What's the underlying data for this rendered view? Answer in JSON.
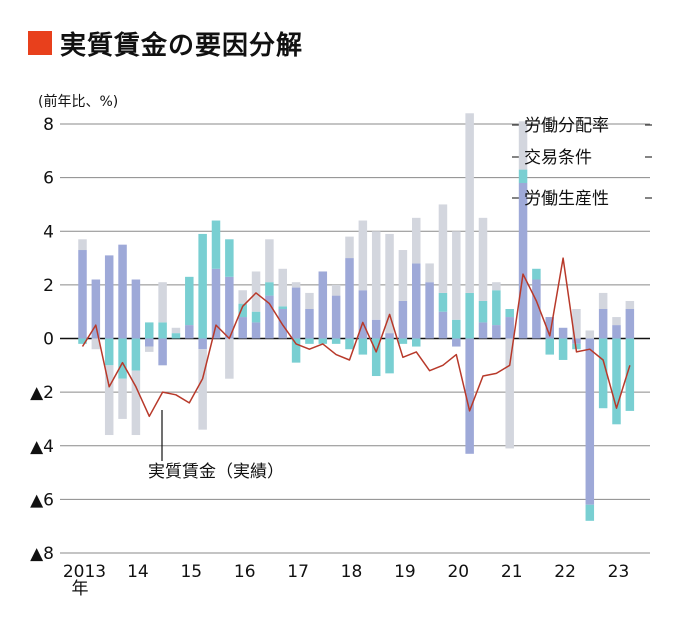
{
  "title": "実質賃金の要因分解",
  "colors": {
    "title_square": "#e8401c",
    "productivity": "#9ea9d8",
    "labor_share": "#d3d6de",
    "terms_of_trade": "#79cfd2",
    "real_wage_line": "#b8392a",
    "grid": "#8a8a8a",
    "zero_line": "#111111"
  },
  "chart_data": {
    "type": "bar",
    "stacked": true,
    "title": "実質賃金の要因分解",
    "unit_label": "(前年比、%)",
    "x_tick_labels": [
      "2013",
      "14",
      "15",
      "16",
      "17",
      "18",
      "19",
      "20",
      "21",
      "22",
      "23"
    ],
    "x_year_suffix": "年",
    "y_tick_labels": [
      "8",
      "6",
      "4",
      "2",
      "0",
      "▲2",
      "▲4",
      "▲6",
      "▲8"
    ],
    "ylim": [
      -8,
      8
    ],
    "y_ticks": [
      8,
      6,
      4,
      2,
      0,
      -2,
      -4,
      -6,
      -8
    ],
    "grid": true,
    "categories": [
      "2013Q1",
      "2013Q2",
      "2013Q3",
      "2013Q4",
      "2014Q1",
      "2014Q2",
      "2014Q3",
      "2014Q4",
      "2015Q1",
      "2015Q2",
      "2015Q3",
      "2015Q4",
      "2016Q1",
      "2016Q2",
      "2016Q3",
      "2016Q4",
      "2017Q1",
      "2017Q2",
      "2017Q3",
      "2017Q4",
      "2018Q1",
      "2018Q2",
      "2018Q3",
      "2018Q4",
      "2019Q1",
      "2019Q2",
      "2019Q3",
      "2019Q4",
      "2020Q1",
      "2020Q2",
      "2020Q3",
      "2020Q4",
      "2021Q1",
      "2021Q2",
      "2021Q3",
      "2021Q4",
      "2022Q1",
      "2022Q2",
      "2022Q3",
      "2022Q4",
      "2023Q1",
      "2023Q2"
    ],
    "legend": [
      "労働分配率",
      "交易条件",
      "労働生産性"
    ],
    "series": [
      {
        "name": "労働生産性",
        "values": [
          3.3,
          2.2,
          3.1,
          3.5,
          2.2,
          -0.3,
          -1.0,
          0.0,
          0.5,
          -0.4,
          2.6,
          2.3,
          0.8,
          0.6,
          1.6,
          1.1,
          1.9,
          1.1,
          2.5,
          1.6,
          3.0,
          1.8,
          0.7,
          0.2,
          1.4,
          2.8,
          2.1,
          1.0,
          -0.3,
          -4.3,
          0.6,
          0.5,
          0.8,
          5.8,
          2.2,
          0.8,
          0.4,
          -0.2,
          -6.2,
          1.1,
          0.5,
          1.1
        ]
      },
      {
        "name": "交易条件",
        "values": [
          -0.2,
          0.0,
          -1.0,
          -1.5,
          -1.2,
          0.6,
          0.6,
          0.2,
          1.8,
          3.9,
          1.8,
          1.4,
          0.5,
          0.4,
          0.5,
          0.1,
          -0.9,
          -0.2,
          -0.2,
          -0.2,
          -0.4,
          -0.6,
          -1.4,
          -1.3,
          -0.2,
          -0.3,
          0.0,
          0.7,
          0.7,
          1.7,
          0.8,
          1.3,
          0.3,
          0.5,
          0.4,
          -0.6,
          -0.8,
          -0.2,
          -0.6,
          -2.6,
          -3.2,
          -2.7
        ]
      },
      {
        "name": "労働分配率",
        "values": [
          0.4,
          -0.4,
          -2.6,
          -1.5,
          -2.4,
          -0.2,
          1.5,
          0.2,
          0.0,
          -3.0,
          0.0,
          -1.5,
          0.5,
          1.5,
          1.6,
          1.4,
          0.2,
          0.6,
          0.0,
          0.4,
          0.8,
          2.6,
          3.3,
          3.7,
          1.9,
          1.7,
          0.7,
          3.3,
          3.3,
          6.7,
          3.1,
          0.3,
          -4.1,
          1.8,
          0.0,
          0.0,
          0.0,
          1.1,
          0.3,
          0.6,
          0.3,
          0.3
        ]
      },
      {
        "name": "実質賃金（実績）",
        "type": "line",
        "values": [
          -0.3,
          0.5,
          -1.8,
          -0.9,
          -1.8,
          -2.9,
          -2.0,
          -2.1,
          -2.4,
          -1.5,
          0.5,
          0.0,
          1.2,
          1.7,
          1.3,
          0.5,
          -0.2,
          -0.4,
          -0.2,
          -0.6,
          -0.8,
          0.6,
          -0.5,
          0.9,
          -0.7,
          -0.5,
          -1.2,
          -1.0,
          -0.6,
          -2.7,
          -1.4,
          -1.3,
          -1.0,
          2.4,
          1.4,
          0.1,
          3.0,
          -0.5,
          -0.4,
          -0.8,
          -2.6,
          -1.0
        ]
      }
    ],
    "annotations": [
      "労働分配率",
      "交易条件",
      "労働生産性",
      "実質賃金（実績）"
    ]
  }
}
